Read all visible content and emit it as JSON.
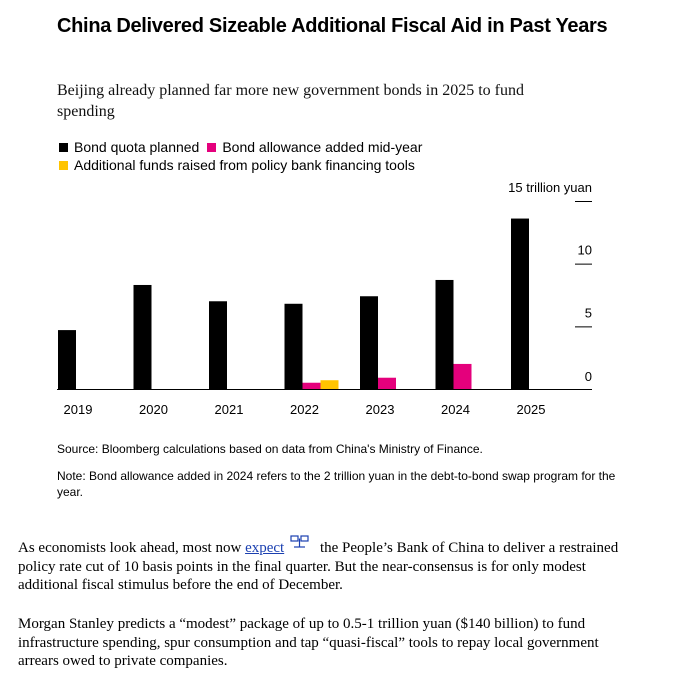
{
  "chart_data": {
    "type": "bar",
    "title": "China Delivered Sizeable Additional Fiscal Aid in Past Years",
    "subtitle": "Beijing already planned far more new government bonds in 2025 to fund spending",
    "categories": [
      "2019",
      "2020",
      "2021",
      "2022",
      "2023",
      "2024",
      "2025"
    ],
    "series": [
      {
        "name": "Bond quota planned",
        "color": "#000000",
        "values": [
          4.7,
          8.3,
          7.0,
          6.8,
          7.4,
          8.7,
          13.6
        ]
      },
      {
        "name": "Bond allowance added mid-year",
        "color": "#e4007c",
        "values": [
          0,
          0,
          0,
          0.5,
          0.9,
          2.0,
          0
        ]
      },
      {
        "name": "Additional funds raised from policy bank financing tools",
        "color": "#ffc400",
        "values": [
          0,
          0,
          0,
          0.7,
          0,
          0,
          0
        ]
      }
    ],
    "yticks": [
      "15 trillion yuan",
      "10",
      "5",
      "0"
    ],
    "ylim": [
      0,
      15
    ],
    "grid": false,
    "legend": "top-left"
  },
  "source": "Source: Bloomberg calculations based on data from China's Ministry of Finance.",
  "note": "Note: Bond allowance added in 2024 refers to the 2 trillion yuan in the debt-to-bond swap program for the year.",
  "article": {
    "p1_before": "As economists look ahead, most now ",
    "p1_link": "expect",
    "p1_after": " the People’s Bank of China to deliver a restrained policy rate cut of 10 basis points in the final quarter. But the near-consensus is for only modest additional fiscal stimulus before the end of December.",
    "link_icon": "compare-icon",
    "p2": "Morgan Stanley predicts a “modest” package of up to 0.5-1 trillion yuan ($140 billion) to fund infrastructure spending, spur consumption and tap “quasi-fiscal” tools to repay local government arrears owed to private companies."
  }
}
